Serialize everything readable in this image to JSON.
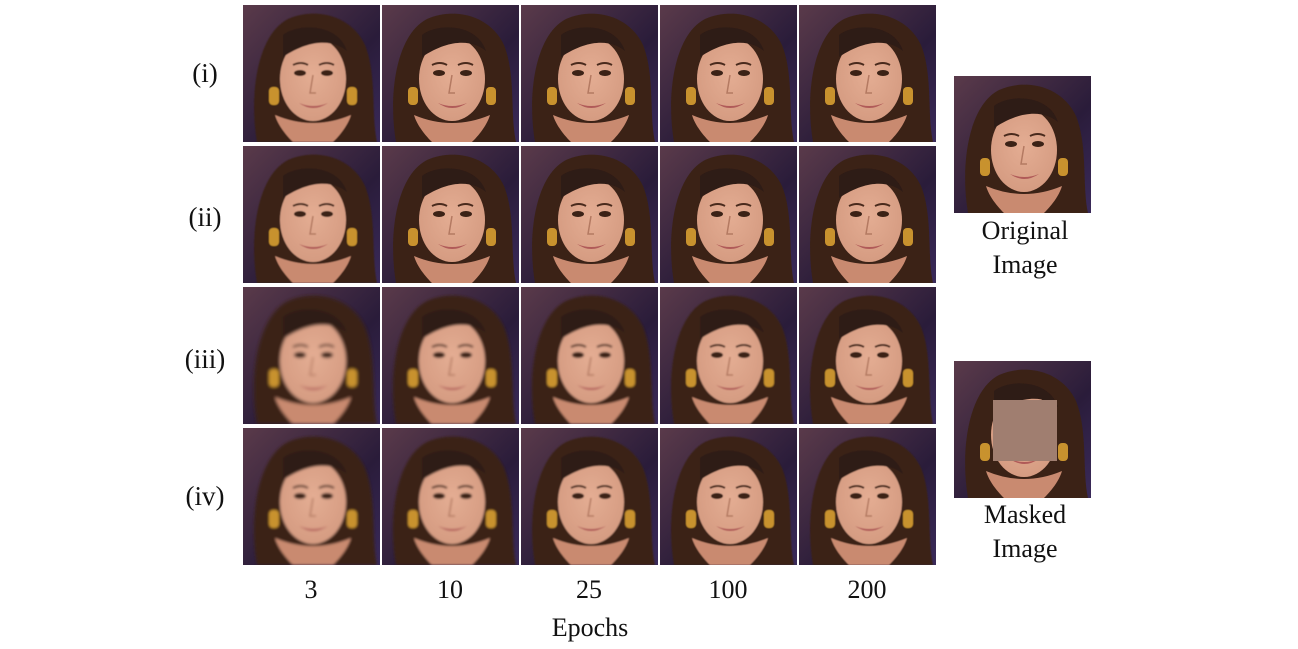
{
  "rows": [
    "(i)",
    "(ii)",
    "(iii)",
    "(iv)"
  ],
  "epochs": [
    "3",
    "10",
    "25",
    "100",
    "200"
  ],
  "epochs_title": "Epochs",
  "original_caption": [
    "Original",
    "Image"
  ],
  "masked_caption": [
    "Masked",
    "Image"
  ],
  "colors": {
    "background": "#2a1c3a",
    "hair": "#3a2218",
    "skin": "#d49a80",
    "earring": "#c8922e",
    "mask": "#a07e70"
  },
  "row_blur_levels": [
    0.4,
    0.5,
    1.6,
    1.4
  ]
}
